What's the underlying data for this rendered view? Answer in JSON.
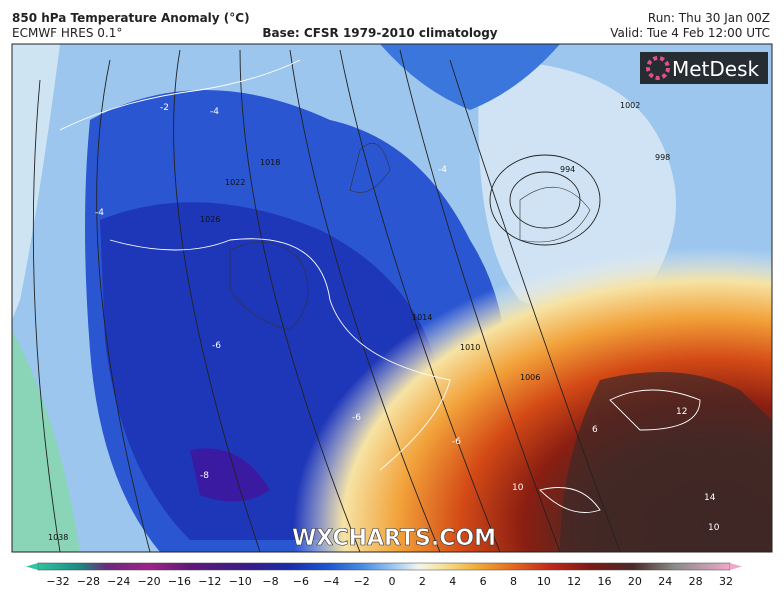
{
  "header": {
    "title": "850 hPa Temperature Anomaly (°C)",
    "model": "ECMWF HRES 0.1°",
    "base": "Base: CFSR 1979-2010 climatology",
    "run": "Run: Thu 30 Jan 00Z",
    "valid": "Valid: Tue 4 Feb 12:00 UTC"
  },
  "logo": "MetDesk",
  "watermark": "WXCHARTS.COM",
  "isobar_labels": [
    "1038",
    "1026",
    "1022",
    "1018",
    "1014",
    "1010",
    "1006",
    "1002",
    "998",
    "994"
  ],
  "anomaly_labels": [
    "-2",
    "-4",
    "-4",
    "-4",
    "-6",
    "-6",
    "-8",
    "-6",
    "6",
    "10",
    "12",
    "14",
    "10"
  ],
  "colorbar": {
    "ticks": [
      "−32",
      "−28",
      "−24",
      "−20",
      "−16",
      "−12",
      "−10",
      "−8",
      "−6",
      "−4",
      "−2",
      "0",
      "2",
      "4",
      "6",
      "8",
      "10",
      "12",
      "16",
      "20",
      "24",
      "28",
      "32"
    ]
  }
}
